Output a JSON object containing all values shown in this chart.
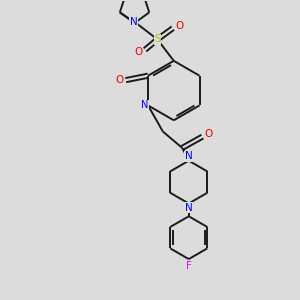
{
  "background_color": "#dcdcdc",
  "bond_color": "#1a1a1a",
  "N_color": "#0000ee",
  "O_color": "#ee0000",
  "S_color": "#bbbb00",
  "F_color": "#ee00ee",
  "figsize": [
    3.0,
    3.0
  ],
  "dpi": 100,
  "xlim": [
    0,
    10
  ],
  "ylim": [
    0,
    10
  ]
}
